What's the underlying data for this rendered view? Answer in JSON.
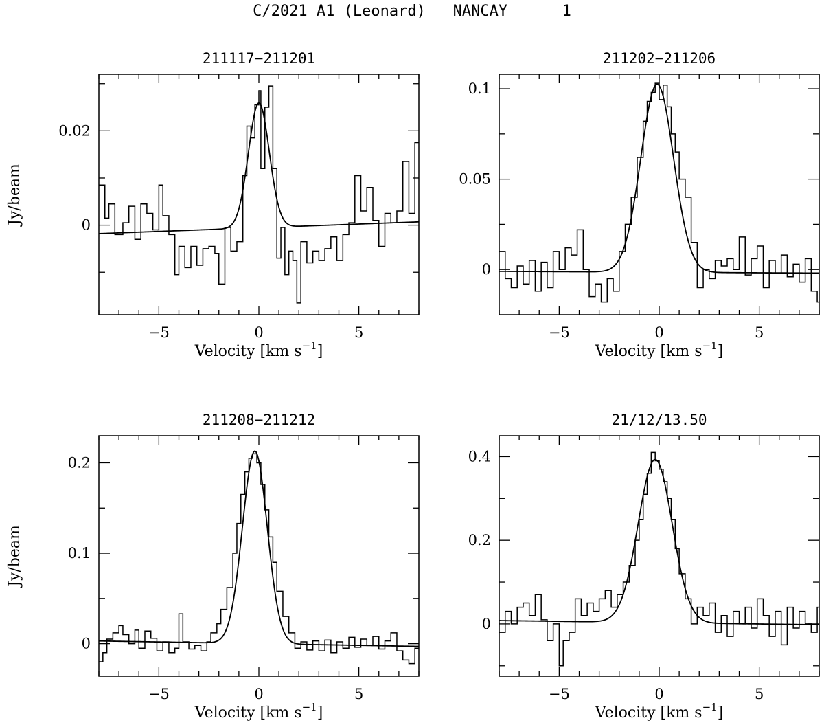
{
  "header": {
    "target": "C/2021 A1 (Leonard)",
    "site": "NANCAY",
    "page": "1"
  },
  "chart_data": [
    {
      "type": "line",
      "title": "211117−211201",
      "xlabel": "Velocity [km s⁻¹]",
      "ylabel": "Jy/beam",
      "xlim": [
        -8,
        8
      ],
      "ylim": [
        -0.019,
        0.032
      ],
      "xticks": [
        -5,
        0,
        5
      ],
      "xtick_labels": [
        "−5",
        "0",
        "5"
      ],
      "yticks": [
        0,
        0.02
      ],
      "ytick_labels": [
        "0",
        "0.02"
      ],
      "minor_yticks": [
        -0.01,
        0.01,
        0.03
      ],
      "fit": {
        "amplitude": 0.0265,
        "center": 0.0,
        "sigma": 0.52,
        "baseline_at_vmin": -0.0018,
        "baseline_at_vmax": 0.0007
      },
      "series": [
        {
          "name": "spectrum",
          "style": "steps",
          "x": [
            -8,
            -7.7,
            -7.5,
            -7.2,
            -6.8,
            -6.5,
            -6.2,
            -5.9,
            -5.6,
            -5.3,
            -5.0,
            -4.8,
            -4.5,
            -4.2,
            -4.0,
            -3.7,
            -3.4,
            -3.1,
            -2.8,
            -2.5,
            -2.2,
            -2.0,
            -1.7,
            -1.4,
            -1.1,
            -0.8,
            -0.6,
            -0.4,
            -0.2,
            0.0,
            0.1,
            0.3,
            0.5,
            0.7,
            0.9,
            1.1,
            1.3,
            1.5,
            1.7,
            1.9,
            2.1,
            2.4,
            2.7,
            3.0,
            3.3,
            3.6,
            3.9,
            4.2,
            4.5,
            4.8,
            5.1,
            5.4,
            5.7,
            6.0,
            6.3,
            6.6,
            6.9,
            7.2,
            7.5,
            7.8
          ],
          "y": [
            0.0085,
            0.0015,
            0.0045,
            -0.002,
            0.0005,
            0.004,
            -0.003,
            0.0045,
            0.0025,
            -0.001,
            0.0085,
            0.002,
            -0.002,
            -0.0105,
            -0.0045,
            -0.009,
            -0.0045,
            -0.0085,
            -0.005,
            -0.0045,
            -0.006,
            -0.0125,
            -0.0005,
            -0.0055,
            -0.0035,
            0.0105,
            0.021,
            0.0185,
            0.0255,
            0.0285,
            0.012,
            0.025,
            0.0295,
            0.012,
            -0.007,
            -0.0005,
            -0.0105,
            -0.0055,
            -0.0075,
            -0.0165,
            -0.0035,
            -0.008,
            -0.0055,
            -0.0075,
            -0.005,
            -0.0025,
            -0.0075,
            -0.002,
            0.0005,
            0.0105,
            0.003,
            0.008,
            0.001,
            -0.0045,
            0.0025,
            0.0005,
            0.003,
            0.0135,
            0.0025,
            0.0175
          ]
        },
        {
          "name": "gaussian fit",
          "style": "line"
        }
      ]
    },
    {
      "type": "line",
      "title": "211202−211206",
      "xlabel": "Velocity [km s⁻¹]",
      "ylabel": "",
      "xlim": [
        -8,
        8
      ],
      "ylim": [
        -0.025,
        0.108
      ],
      "xticks": [
        -5,
        0,
        5
      ],
      "xtick_labels": [
        "−5",
        "0",
        "5"
      ],
      "yticks": [
        0,
        0.05,
        0.1
      ],
      "ytick_labels": [
        "0",
        "0.05",
        "0.1"
      ],
      "minor_yticks": [
        0.025,
        0.075
      ],
      "fit": {
        "amplitude": 0.104,
        "center": -0.1,
        "sigma": 0.82,
        "baseline_at_vmin": -0.001,
        "baseline_at_vmax": -0.002
      },
      "series": [
        {
          "name": "spectrum",
          "style": "steps",
          "x": [
            -8,
            -7.7,
            -7.4,
            -7.1,
            -6.8,
            -6.5,
            -6.2,
            -5.9,
            -5.6,
            -5.3,
            -5.0,
            -4.7,
            -4.4,
            -4.1,
            -3.8,
            -3.5,
            -3.2,
            -2.9,
            -2.6,
            -2.3,
            -2.0,
            -1.7,
            -1.4,
            -1.1,
            -0.8,
            -0.6,
            -0.4,
            -0.2,
            0.0,
            0.2,
            0.4,
            0.6,
            0.8,
            1.0,
            1.3,
            1.6,
            1.9,
            2.2,
            2.5,
            2.8,
            3.1,
            3.4,
            3.7,
            4.0,
            4.3,
            4.6,
            4.9,
            5.2,
            5.5,
            5.8,
            6.1,
            6.4,
            6.7,
            7.0,
            7.3,
            7.6,
            7.9
          ],
          "y": [
            0.01,
            -0.005,
            -0.01,
            0.002,
            -0.008,
            0.005,
            -0.012,
            0.004,
            -0.01,
            0.01,
            0.0,
            0.012,
            0.008,
            0.022,
            0.0,
            -0.015,
            -0.008,
            -0.018,
            -0.005,
            -0.012,
            0.01,
            0.025,
            0.04,
            0.062,
            0.082,
            0.093,
            0.098,
            0.103,
            0.094,
            0.102,
            0.09,
            0.075,
            0.065,
            0.05,
            0.04,
            0.015,
            -0.01,
            0.0,
            -0.005,
            0.005,
            0.002,
            0.006,
            0.0,
            0.018,
            -0.003,
            0.006,
            0.013,
            -0.01,
            0.005,
            -0.002,
            0.008,
            -0.004,
            0.003,
            -0.007,
            0.006,
            -0.012,
            -0.018
          ]
        },
        {
          "name": "gaussian fit",
          "style": "line"
        }
      ]
    },
    {
      "type": "line",
      "title": "211208−211212",
      "xlabel": "Velocity [km s⁻¹]",
      "ylabel": "Jy/beam",
      "xlim": [
        -8,
        8
      ],
      "ylim": [
        -0.036,
        0.23
      ],
      "xticks": [
        -5,
        0,
        5
      ],
      "xtick_labels": [
        "−5",
        "0",
        "5"
      ],
      "yticks": [
        0,
        0.1,
        0.2
      ],
      "ytick_labels": [
        "0",
        "0.1",
        "0.2"
      ],
      "minor_yticks": [
        0.05,
        0.15
      ],
      "fit": {
        "amplitude": 0.213,
        "center": -0.2,
        "sigma": 0.62,
        "baseline_at_vmin": 0.003,
        "baseline_at_vmax": -0.003
      },
      "series": [
        {
          "name": "spectrum",
          "style": "steps",
          "x": [
            -8,
            -7.8,
            -7.6,
            -7.3,
            -7.0,
            -6.8,
            -6.5,
            -6.2,
            -6.0,
            -5.7,
            -5.4,
            -5.1,
            -4.8,
            -4.5,
            -4.2,
            -4.0,
            -3.8,
            -3.5,
            -3.2,
            -2.9,
            -2.6,
            -2.4,
            -2.1,
            -1.9,
            -1.6,
            -1.3,
            -1.1,
            -0.9,
            -0.7,
            -0.5,
            -0.3,
            -0.1,
            0.1,
            0.3,
            0.5,
            0.7,
            0.9,
            1.2,
            1.5,
            1.8,
            2.1,
            2.4,
            2.7,
            3.0,
            3.3,
            3.6,
            3.9,
            4.2,
            4.5,
            4.8,
            5.1,
            5.4,
            5.7,
            6.0,
            6.3,
            6.6,
            6.9,
            7.2,
            7.5,
            7.8
          ],
          "y": [
            -0.02,
            -0.01,
            0.005,
            0.012,
            0.02,
            0.01,
            0.0,
            0.015,
            -0.005,
            0.014,
            0.006,
            -0.008,
            0.002,
            -0.01,
            -0.005,
            0.033,
            0.002,
            -0.006,
            -0.002,
            -0.008,
            0.002,
            0.012,
            0.022,
            0.038,
            0.062,
            0.1,
            0.133,
            0.165,
            0.19,
            0.205,
            0.21,
            0.2,
            0.176,
            0.148,
            0.118,
            0.09,
            0.058,
            0.03,
            0.012,
            -0.005,
            0.002,
            -0.007,
            0.003,
            -0.008,
            0.004,
            -0.01,
            0.002,
            -0.005,
            0.007,
            -0.004,
            0.005,
            -0.002,
            0.008,
            -0.006,
            0.003,
            0.012,
            -0.008,
            -0.018,
            -0.022,
            -0.005
          ]
        },
        {
          "name": "gaussian fit",
          "style": "line"
        }
      ]
    },
    {
      "type": "line",
      "title": "21/12/13.50",
      "xlabel": "Velocity [km s⁻¹]",
      "ylabel": "",
      "xlim": [
        -8,
        8
      ],
      "ylim": [
        -0.125,
        0.45
      ],
      "xticks": [
        -5,
        0,
        5
      ],
      "xtick_labels": [
        "−5",
        "0",
        "5"
      ],
      "yticks": [
        0,
        0.2,
        0.4
      ],
      "ytick_labels": [
        "0",
        "0.2",
        "0.4"
      ],
      "minor_yticks": [
        -0.1,
        0.1,
        0.3
      ],
      "fit": {
        "amplitude": 0.39,
        "center": -0.2,
        "sigma": 0.85,
        "baseline_at_vmin": 0.008,
        "baseline_at_vmax": -0.002
      },
      "series": [
        {
          "name": "spectrum",
          "style": "steps",
          "x": [
            -8,
            -7.7,
            -7.4,
            -7.1,
            -6.8,
            -6.5,
            -6.2,
            -5.9,
            -5.6,
            -5.3,
            -5.0,
            -4.8,
            -4.5,
            -4.2,
            -3.9,
            -3.6,
            -3.3,
            -3.0,
            -2.7,
            -2.4,
            -2.1,
            -1.8,
            -1.5,
            -1.2,
            -1.0,
            -0.8,
            -0.6,
            -0.4,
            -0.2,
            0.0,
            0.2,
            0.4,
            0.6,
            0.8,
            1.0,
            1.3,
            1.6,
            1.9,
            2.2,
            2.5,
            2.8,
            3.1,
            3.4,
            3.7,
            4.0,
            4.3,
            4.6,
            4.9,
            5.2,
            5.5,
            5.8,
            6.1,
            6.4,
            6.7,
            7.0,
            7.3,
            7.6,
            7.9
          ],
          "y": [
            -0.02,
            0.03,
            0.0,
            0.04,
            0.05,
            0.02,
            0.07,
            0.01,
            -0.04,
            0.0,
            -0.1,
            -0.04,
            -0.02,
            0.06,
            0.02,
            0.05,
            0.03,
            0.06,
            0.08,
            0.04,
            0.07,
            0.1,
            0.14,
            0.2,
            0.25,
            0.31,
            0.36,
            0.41,
            0.39,
            0.37,
            0.34,
            0.3,
            0.25,
            0.18,
            0.12,
            0.06,
            0.0,
            0.04,
            0.02,
            0.05,
            -0.02,
            0.02,
            -0.03,
            0.03,
            0.0,
            0.04,
            -0.01,
            0.06,
            0.02,
            -0.03,
            0.03,
            -0.05,
            0.04,
            -0.01,
            0.03,
            0.0,
            -0.02,
            0.04
          ]
        },
        {
          "name": "gaussian fit",
          "style": "line"
        }
      ]
    }
  ]
}
